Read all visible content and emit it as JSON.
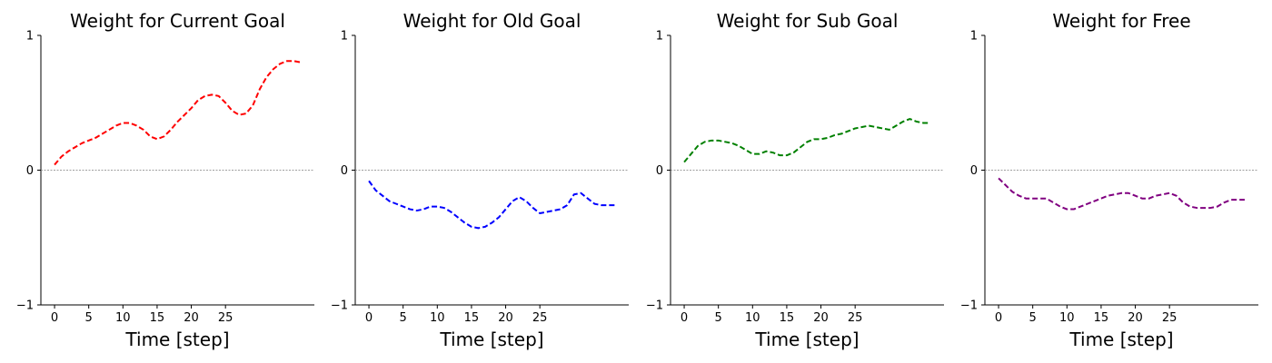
{
  "chart_data": [
    {
      "type": "line",
      "title": "Weight for Current Goal",
      "xlabel": "Time [step]",
      "ylabel": "",
      "xlim": [
        -2,
        38
      ],
      "ylim": [
        -1,
        1
      ],
      "xticks": [
        0,
        5,
        10,
        15,
        20,
        25
      ],
      "yticks": [
        -1,
        0,
        1
      ],
      "ytick_labels": [
        "−1",
        "0",
        "1"
      ],
      "zero_line": true,
      "series": [
        {
          "color": "#ff0000",
          "x": [
            0,
            1,
            2,
            3,
            4,
            5,
            6,
            7,
            8,
            9,
            10,
            11,
            12,
            13,
            14,
            15,
            16,
            17,
            18,
            19,
            20,
            21,
            22,
            23,
            24,
            25,
            26,
            27,
            28,
            29,
            30,
            31,
            32,
            33,
            34,
            35,
            36
          ],
          "y": [
            0.04,
            0.1,
            0.14,
            0.17,
            0.2,
            0.22,
            0.24,
            0.27,
            0.3,
            0.33,
            0.35,
            0.35,
            0.33,
            0.3,
            0.25,
            0.23,
            0.25,
            0.3,
            0.36,
            0.41,
            0.46,
            0.52,
            0.55,
            0.56,
            0.55,
            0.5,
            0.44,
            0.41,
            0.42,
            0.48,
            0.6,
            0.69,
            0.75,
            0.79,
            0.81,
            0.81,
            0.8
          ]
        }
      ]
    },
    {
      "type": "line",
      "title": "Weight for Old Goal",
      "xlabel": "Time [step]",
      "ylabel": "",
      "xlim": [
        -2,
        38
      ],
      "ylim": [
        -1,
        1
      ],
      "xticks": [
        0,
        5,
        10,
        15,
        20,
        25
      ],
      "yticks": [
        -1,
        0,
        1
      ],
      "ytick_labels": [
        "−1",
        "0",
        "1"
      ],
      "zero_line": true,
      "series": [
        {
          "color": "#0000ff",
          "x": [
            0,
            1,
            2,
            3,
            4,
            5,
            6,
            7,
            8,
            9,
            10,
            11,
            12,
            13,
            14,
            15,
            16,
            17,
            18,
            19,
            20,
            21,
            22,
            23,
            24,
            25,
            26,
            27,
            28,
            29,
            30,
            31,
            32,
            33,
            34,
            35,
            36
          ],
          "y": [
            -0.08,
            -0.15,
            -0.19,
            -0.23,
            -0.25,
            -0.27,
            -0.29,
            -0.3,
            -0.29,
            -0.27,
            -0.27,
            -0.28,
            -0.31,
            -0.35,
            -0.39,
            -0.42,
            -0.43,
            -0.42,
            -0.39,
            -0.35,
            -0.29,
            -0.23,
            -0.2,
            -0.23,
            -0.28,
            -0.32,
            -0.31,
            -0.3,
            -0.29,
            -0.26,
            -0.18,
            -0.17,
            -0.21,
            -0.25,
            -0.26,
            -0.26,
            -0.26
          ]
        }
      ]
    },
    {
      "type": "line",
      "title": "Weight for Sub Goal",
      "xlabel": "Time [step]",
      "ylabel": "",
      "xlim": [
        -2,
        38
      ],
      "ylim": [
        -1,
        1
      ],
      "xticks": [
        0,
        5,
        10,
        15,
        20,
        25
      ],
      "yticks": [
        -1,
        0,
        1
      ],
      "ytick_labels": [
        "−1",
        "0",
        "1"
      ],
      "zero_line": true,
      "series": [
        {
          "color": "#008000",
          "x": [
            0,
            1,
            2,
            3,
            4,
            5,
            6,
            7,
            8,
            9,
            10,
            11,
            12,
            13,
            14,
            15,
            16,
            17,
            18,
            19,
            20,
            21,
            22,
            23,
            24,
            25,
            26,
            27,
            28,
            29,
            30,
            31,
            32,
            33,
            34,
            35,
            36
          ],
          "y": [
            0.06,
            0.12,
            0.18,
            0.21,
            0.22,
            0.22,
            0.21,
            0.2,
            0.18,
            0.15,
            0.12,
            0.12,
            0.14,
            0.13,
            0.11,
            0.11,
            0.13,
            0.17,
            0.21,
            0.23,
            0.23,
            0.24,
            0.26,
            0.27,
            0.29,
            0.31,
            0.32,
            0.33,
            0.32,
            0.31,
            0.3,
            0.33,
            0.36,
            0.38,
            0.36,
            0.35,
            0.35
          ]
        }
      ]
    },
    {
      "type": "line",
      "title": "Weight for Free",
      "xlabel": "Time [step]",
      "ylabel": "",
      "xlim": [
        -2,
        38
      ],
      "ylim": [
        -1,
        1
      ],
      "xticks": [
        0,
        5,
        10,
        15,
        20,
        25
      ],
      "yticks": [
        -1,
        0,
        1
      ],
      "ytick_labels": [
        "−1",
        "0",
        "1"
      ],
      "zero_line": true,
      "series": [
        {
          "color": "#800080",
          "x": [
            0,
            1,
            2,
            3,
            4,
            5,
            6,
            7,
            8,
            9,
            10,
            11,
            12,
            13,
            14,
            15,
            16,
            17,
            18,
            19,
            20,
            21,
            22,
            23,
            24,
            25,
            26,
            27,
            28,
            29,
            30,
            31,
            32,
            33,
            34,
            35,
            36
          ],
          "y": [
            -0.06,
            -0.11,
            -0.16,
            -0.19,
            -0.21,
            -0.21,
            -0.21,
            -0.21,
            -0.24,
            -0.27,
            -0.29,
            -0.29,
            -0.27,
            -0.25,
            -0.23,
            -0.21,
            -0.19,
            -0.18,
            -0.17,
            -0.17,
            -0.19,
            -0.21,
            -0.21,
            -0.19,
            -0.18,
            -0.17,
            -0.19,
            -0.24,
            -0.27,
            -0.28,
            -0.28,
            -0.28,
            -0.27,
            -0.24,
            -0.22,
            -0.22,
            -0.22
          ]
        }
      ]
    }
  ]
}
